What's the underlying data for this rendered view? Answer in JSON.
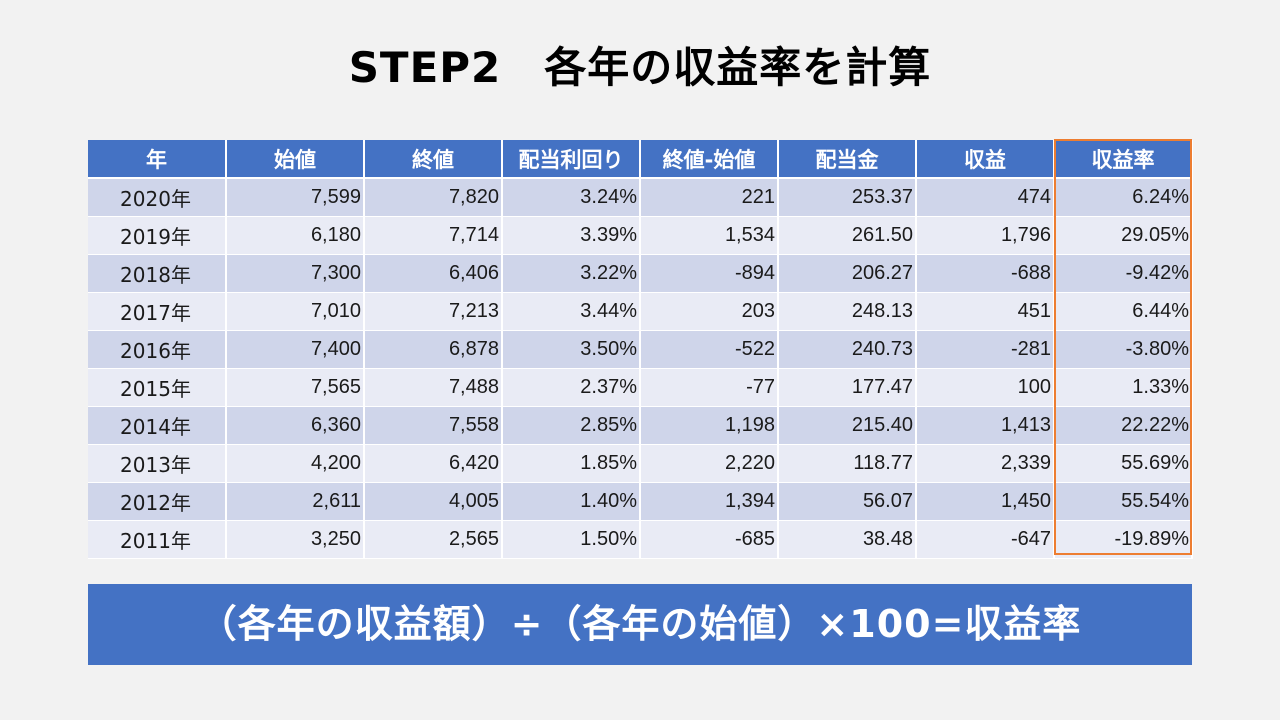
{
  "title": "STEP2　各年の収益率を計算",
  "table": {
    "headers": [
      "年",
      "始値",
      "終値",
      "配当利回り",
      "終値-始値",
      "配当金",
      "収益",
      "収益率"
    ],
    "rows": [
      [
        "2020年",
        "7,599",
        "7,820",
        "3.24%",
        "221",
        "253.37",
        "474",
        "6.24%"
      ],
      [
        "2019年",
        "6,180",
        "7,714",
        "3.39%",
        "1,534",
        "261.50",
        "1,796",
        "29.05%"
      ],
      [
        "2018年",
        "7,300",
        "6,406",
        "3.22%",
        "-894",
        "206.27",
        "-688",
        "-9.42%"
      ],
      [
        "2017年",
        "7,010",
        "7,213",
        "3.44%",
        "203",
        "248.13",
        "451",
        "6.44%"
      ],
      [
        "2016年",
        "7,400",
        "6,878",
        "3.50%",
        "-522",
        "240.73",
        "-281",
        "-3.80%"
      ],
      [
        "2015年",
        "7,565",
        "7,488",
        "2.37%",
        "-77",
        "177.47",
        "100",
        "1.33%"
      ],
      [
        "2014年",
        "6,360",
        "7,558",
        "2.85%",
        "1,198",
        "215.40",
        "1,413",
        "22.22%"
      ],
      [
        "2013年",
        "4,200",
        "6,420",
        "1.85%",
        "2,220",
        "118.77",
        "2,339",
        "55.69%"
      ],
      [
        "2012年",
        "2,611",
        "4,005",
        "1.40%",
        "1,394",
        "56.07",
        "1,450",
        "55.54%"
      ],
      [
        "2011年",
        "3,250",
        "2,565",
        "1.50%",
        "-685",
        "38.48",
        "-647",
        "-19.89%"
      ]
    ]
  },
  "formula": "（各年の収益額）÷（各年の始値）×100=収益率",
  "colors": {
    "header_bg": "#4472c4",
    "row_odd": "#cfd5ea",
    "row_even": "#e9ebf5",
    "highlight_border": "#ed7d31",
    "banner_bg": "#4472c4"
  }
}
